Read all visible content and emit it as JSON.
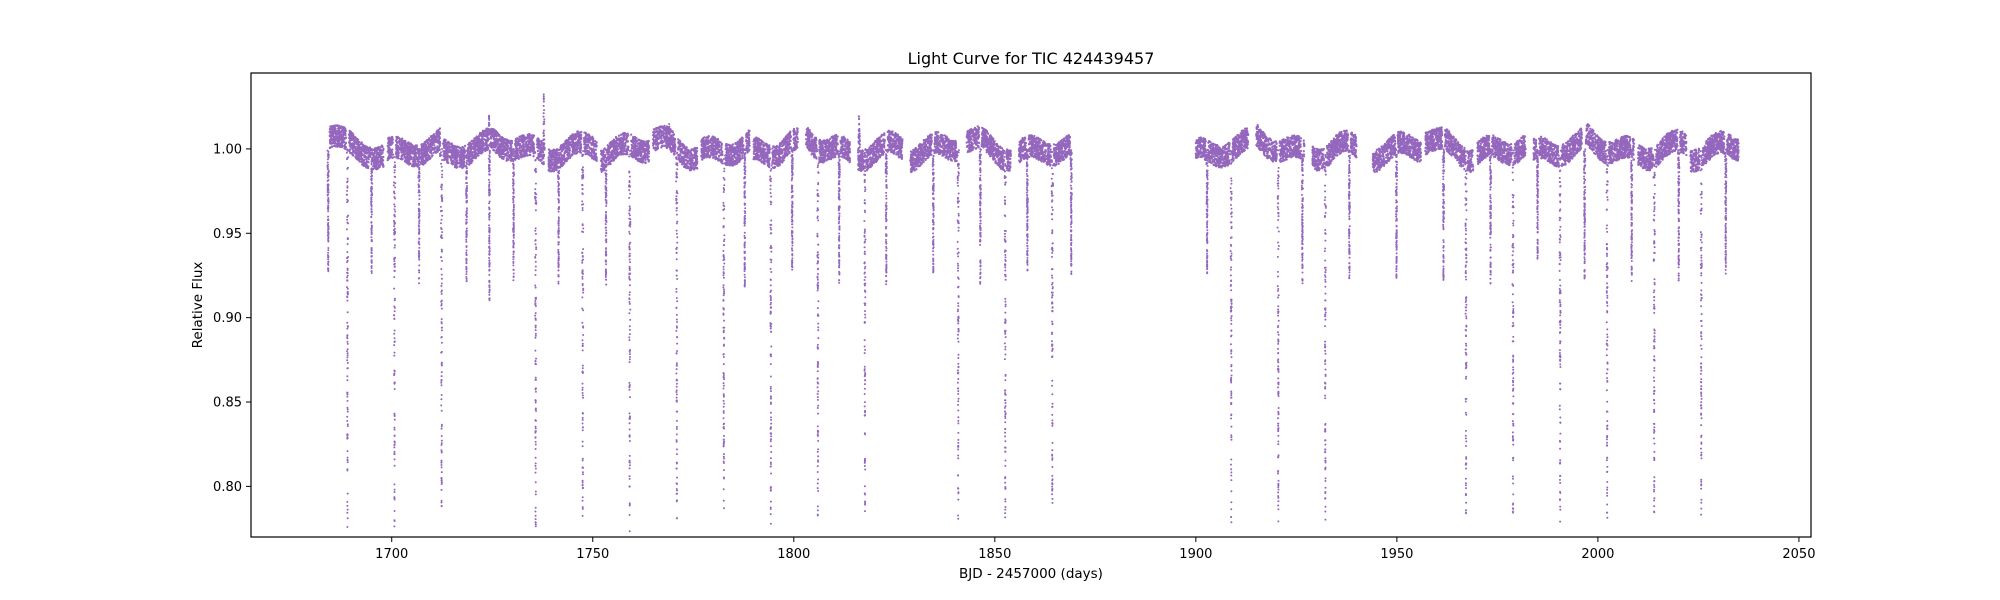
{
  "chart_data": {
    "type": "scatter",
    "title": "Light Curve for TIC 424439457",
    "xlabel": "BJD - 2457000 (days)",
    "ylabel": "Relative Flux",
    "xlim": [
      1665,
      2053
    ],
    "ylim": [
      0.77,
      1.045
    ],
    "xticks": [
      1700,
      1750,
      1800,
      1850,
      1900,
      1950,
      2000,
      2050
    ],
    "yticks": [
      0.8,
      0.85,
      0.9,
      0.95,
      1.0
    ],
    "xtick_labels": [
      "1700",
      "1750",
      "1800",
      "1850",
      "1900",
      "1950",
      "2000",
      "2050"
    ],
    "ytick_labels": [
      "0.80",
      "0.85",
      "0.90",
      "0.95",
      "1.00"
    ],
    "grid": false,
    "legend": "none",
    "marker_color": "#9467bd",
    "baseline": 1.0,
    "segments": [
      [
        1684,
        1698
      ],
      [
        1699,
        1712
      ],
      [
        1712,
        1725
      ],
      [
        1725,
        1738
      ],
      [
        1739,
        1751
      ],
      [
        1752,
        1764
      ],
      [
        1765,
        1776
      ],
      [
        1777,
        1789
      ],
      [
        1790,
        1801
      ],
      [
        1803,
        1814
      ],
      [
        1816,
        1827
      ],
      [
        1829,
        1841
      ],
      [
        1843,
        1854
      ],
      [
        1856,
        1869
      ],
      [
        1900,
        1913
      ],
      [
        1915,
        1927
      ],
      [
        1929,
        1940
      ],
      [
        1944,
        1956
      ],
      [
        1957,
        1969
      ],
      [
        1970,
        1982
      ],
      [
        1984,
        1996
      ],
      [
        1997,
        2009
      ],
      [
        2010,
        2022
      ],
      [
        2023,
        2035
      ]
    ],
    "primary_eclipses": [
      [
        1689.0,
        0.775
      ],
      [
        1700.7,
        0.775
      ],
      [
        1712.4,
        0.785
      ],
      [
        1735.8,
        0.775
      ],
      [
        1747.5,
        0.78
      ],
      [
        1759.2,
        0.773
      ],
      [
        1770.9,
        0.775
      ],
      [
        1782.6,
        0.78
      ],
      [
        1794.3,
        0.775
      ],
      [
        1806.0,
        0.78
      ],
      [
        1817.7,
        0.785
      ],
      [
        1840.9,
        0.78
      ],
      [
        1852.6,
        0.78
      ],
      [
        1864.3,
        0.785
      ],
      [
        1908.8,
        0.777
      ],
      [
        1920.5,
        0.778
      ],
      [
        1932.2,
        0.78
      ],
      [
        1967.2,
        0.78
      ],
      [
        1978.9,
        0.775
      ],
      [
        1990.6,
        0.778
      ],
      [
        2002.3,
        0.78
      ],
      [
        2014.0,
        0.78
      ],
      [
        2025.7,
        0.777
      ]
    ],
    "secondary_eclipses": [
      [
        1684.2,
        0.925
      ],
      [
        1695.0,
        0.925
      ],
      [
        1706.8,
        0.92
      ],
      [
        1718.6,
        0.92
      ],
      [
        1724.3,
        0.91
      ],
      [
        1730.3,
        0.92
      ],
      [
        1741.5,
        0.92
      ],
      [
        1753.3,
        0.918
      ],
      [
        1787.8,
        0.918
      ],
      [
        1799.6,
        0.925
      ],
      [
        1811.3,
        0.92
      ],
      [
        1823.0,
        0.918
      ],
      [
        1834.7,
        0.925
      ],
      [
        1846.4,
        0.92
      ],
      [
        1858.1,
        0.928
      ],
      [
        1869.0,
        0.925
      ],
      [
        1902.8,
        0.923
      ],
      [
        1926.5,
        0.92
      ],
      [
        1938.2,
        0.922
      ],
      [
        1949.9,
        0.923
      ],
      [
        1961.6,
        0.92
      ],
      [
        1973.3,
        0.92
      ],
      [
        1985.0,
        0.935
      ],
      [
        1996.7,
        0.92
      ],
      [
        2008.4,
        0.92
      ],
      [
        2020.1,
        0.922
      ],
      [
        2031.8,
        0.922
      ]
    ],
    "flares": [
      [
        1724.2,
        1.02
      ],
      [
        1737.8,
        1.033
      ],
      [
        1816.2,
        1.02
      ],
      [
        1769.0,
        1.015
      ]
    ]
  }
}
